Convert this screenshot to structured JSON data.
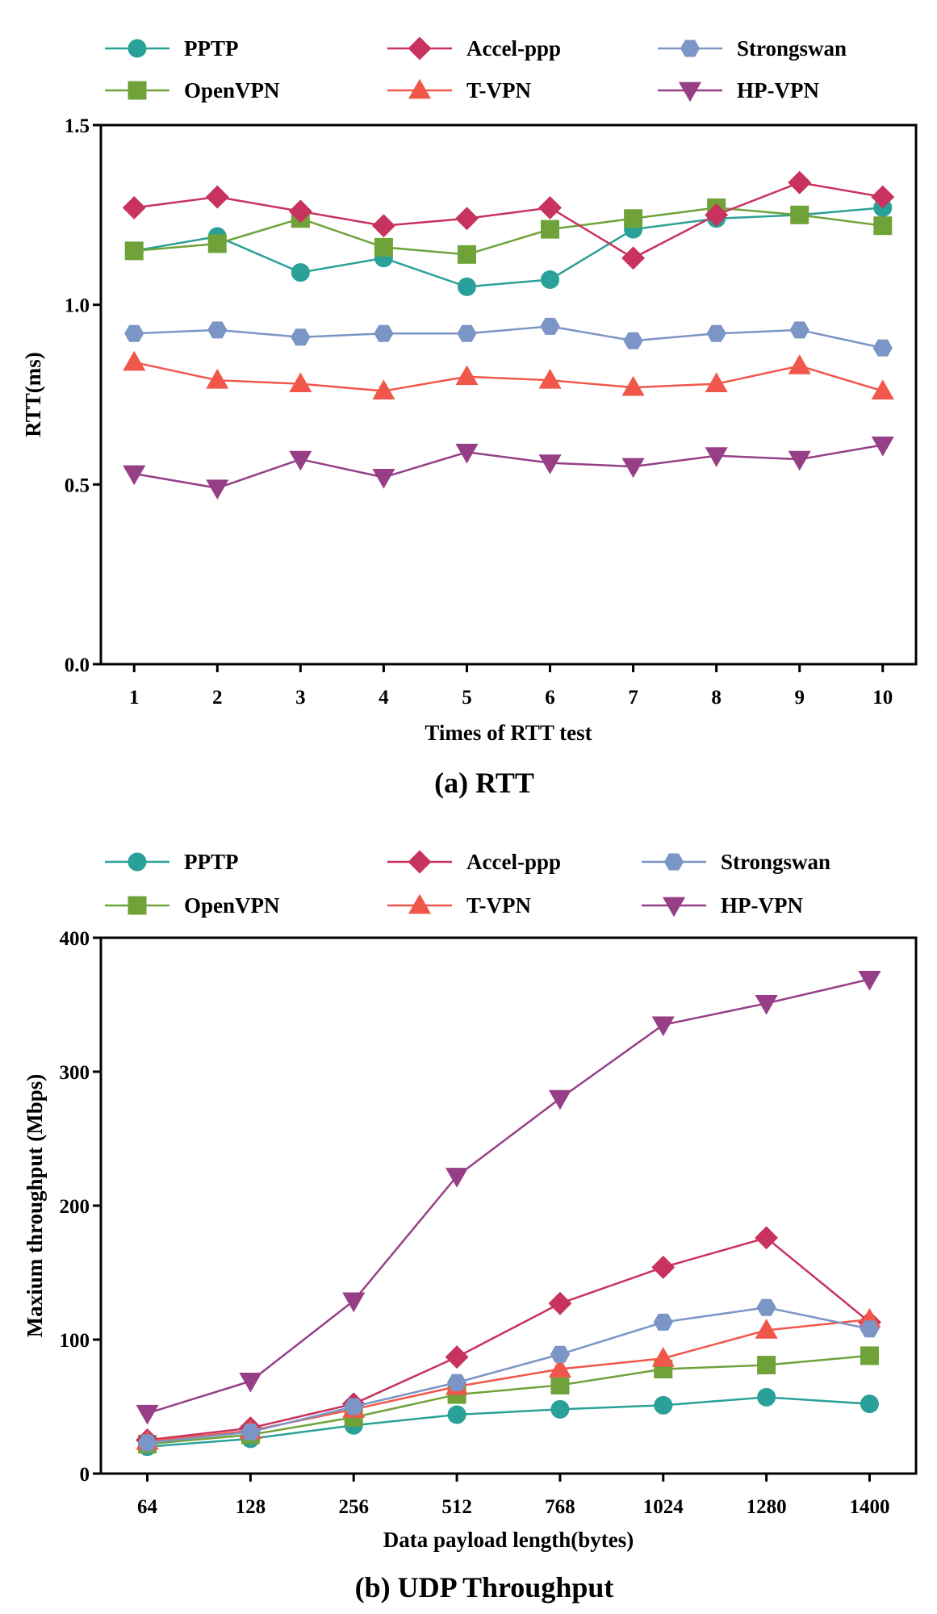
{
  "chart_data": [
    {
      "type": "line",
      "caption": "(a) RTT",
      "xlabel": "Times of RTT test",
      "ylabel": "RTT(ms)",
      "categories": [
        "1",
        "2",
        "3",
        "4",
        "5",
        "6",
        "7",
        "8",
        "9",
        "10"
      ],
      "ylim": [
        0,
        1.5
      ],
      "yticks": [
        "0.0",
        "0.5",
        "1.0",
        "1.5"
      ],
      "ytick_values": [
        0,
        0.5,
        1.0,
        1.5
      ],
      "series": [
        {
          "name": "PPTP",
          "color": "#2aa198",
          "marker": "circle",
          "values": [
            1.15,
            1.19,
            1.09,
            1.13,
            1.05,
            1.07,
            1.21,
            1.24,
            1.25,
            1.27
          ]
        },
        {
          "name": "OpenVPN",
          "color": "#70a23a",
          "marker": "square",
          "values": [
            1.15,
            1.17,
            1.24,
            1.16,
            1.14,
            1.21,
            1.24,
            1.27,
            1.25,
            1.22
          ]
        },
        {
          "name": "Accel-ppp",
          "color": "#c8325e",
          "marker": "diamond",
          "values": [
            1.27,
            1.3,
            1.26,
            1.22,
            1.24,
            1.27,
            1.13,
            1.25,
            1.34,
            1.3
          ]
        },
        {
          "name": "T-VPN",
          "color": "#f0574a",
          "marker": "triangle-up",
          "values": [
            0.84,
            0.79,
            0.78,
            0.76,
            0.8,
            0.79,
            0.77,
            0.78,
            0.83,
            0.76
          ]
        },
        {
          "name": "Strongswan",
          "color": "#7b95c6",
          "marker": "hexagon",
          "values": [
            0.92,
            0.93,
            0.91,
            0.92,
            0.92,
            0.94,
            0.9,
            0.92,
            0.93,
            0.88
          ]
        },
        {
          "name": "HP-VPN",
          "color": "#963f86",
          "marker": "triangle-down",
          "values": [
            0.53,
            0.49,
            0.57,
            0.52,
            0.59,
            0.56,
            0.55,
            0.58,
            0.57,
            0.61
          ]
        }
      ]
    },
    {
      "type": "line",
      "caption": "(b) UDP Throughput",
      "xlabel": "Data payload length(bytes)",
      "ylabel": "Maxium throughput (Mbps)",
      "categories": [
        "64",
        "128",
        "256",
        "512",
        "768",
        "1024",
        "1280",
        "1400"
      ],
      "ylim": [
        0,
        400
      ],
      "yticks": [
        "0",
        "100",
        "200",
        "300",
        "400"
      ],
      "ytick_values": [
        0,
        100,
        200,
        300,
        400
      ],
      "series": [
        {
          "name": "PPTP",
          "color": "#2aa198",
          "marker": "circle",
          "values": [
            20,
            26,
            36,
            44,
            48,
            51,
            57,
            52
          ]
        },
        {
          "name": "OpenVPN",
          "color": "#70a23a",
          "marker": "square",
          "values": [
            22,
            29,
            42,
            59,
            66,
            78,
            81,
            88
          ]
        },
        {
          "name": "Accel-ppp",
          "color": "#c8325e",
          "marker": "diamond",
          "values": [
            25,
            34,
            52,
            87,
            127,
            154,
            176,
            113
          ]
        },
        {
          "name": "T-VPN",
          "color": "#f0574a",
          "marker": "triangle-up",
          "values": [
            24,
            32,
            48,
            65,
            78,
            86,
            107,
            115
          ]
        },
        {
          "name": "Strongswan",
          "color": "#7b95c6",
          "marker": "hexagon",
          "values": [
            23,
            31,
            50,
            68,
            89,
            113,
            124,
            108
          ]
        },
        {
          "name": "HP-VPN",
          "color": "#963f86",
          "marker": "triangle-down",
          "values": [
            45,
            69,
            129,
            222,
            280,
            335,
            351,
            369
          ]
        }
      ]
    }
  ]
}
